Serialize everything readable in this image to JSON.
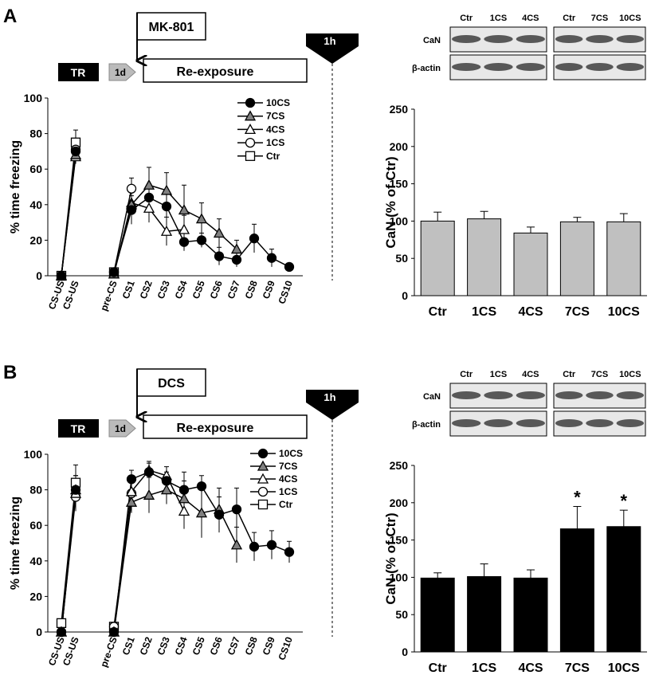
{
  "panels": [
    {
      "label": "A",
      "drug": "MK-801",
      "training": "TR",
      "delay": "1d",
      "session": "Re-exposure",
      "interval": "1h",
      "blot": {
        "groups": [
          [
            "Ctr",
            "1CS",
            "4CS"
          ],
          [
            "Ctr",
            "7CS",
            "10CS"
          ]
        ],
        "rows": [
          "CaN",
          "β-actin"
        ]
      }
    },
    {
      "label": "B",
      "drug": "DCS",
      "training": "TR",
      "delay": "1d",
      "session": "Re-exposure",
      "interval": "1h",
      "blot": {
        "groups": [
          [
            "Ctr",
            "1CS",
            "4CS"
          ],
          [
            "Ctr",
            "7CS",
            "10CS"
          ]
        ],
        "rows": [
          "CaN",
          "β-actin"
        ]
      }
    }
  ],
  "chart_data": [
    {
      "type": "line",
      "ylabel": "% time freezing",
      "categories": [
        "CS-US",
        "CS-US",
        "pre-CS",
        "CS1",
        "CS2",
        "CS3",
        "CS4",
        "CS5",
        "CS6",
        "CS7",
        "CS8",
        "CS9",
        "CS10"
      ],
      "ylim": [
        0,
        100
      ],
      "yticks": [
        0,
        20,
        40,
        60,
        80,
        100
      ],
      "series": [
        {
          "name": "10CS",
          "marker": "circle",
          "color": "#000000",
          "values": [
            0,
            70,
            2,
            37,
            44,
            39,
            19,
            20,
            11,
            9,
            21,
            10,
            5
          ],
          "errors": [
            0,
            5,
            1,
            8,
            7,
            9,
            5,
            4,
            5,
            4,
            8,
            5,
            2
          ]
        },
        {
          "name": "7CS",
          "marker": "triangle",
          "color": "#808080",
          "values": [
            0,
            68,
            1,
            40,
            51,
            48,
            37,
            32,
            24,
            15,
            null,
            null,
            null
          ],
          "errors": [
            0,
            4,
            1,
            10,
            10,
            10,
            14,
            9,
            8,
            5,
            null,
            null,
            null
          ]
        },
        {
          "name": "4CS",
          "marker": "triangle",
          "color": "#ffffff",
          "values": [
            0,
            67,
            1,
            41,
            38,
            25,
            26,
            null,
            null,
            null,
            null,
            null,
            null
          ],
          "errors": [
            0,
            4,
            1,
            9,
            8,
            8,
            8,
            null,
            null,
            null,
            null,
            null,
            null
          ]
        },
        {
          "name": "1CS",
          "marker": "circle",
          "color": "#ffffff",
          "values": [
            0,
            71,
            2,
            49,
            null,
            null,
            null,
            null,
            null,
            null,
            null,
            null,
            null
          ],
          "errors": [
            0,
            5,
            1,
            6,
            null,
            null,
            null,
            null,
            null,
            null,
            null,
            null,
            null
          ]
        },
        {
          "name": "Ctr",
          "marker": "square",
          "color": "#ffffff",
          "values": [
            0,
            75,
            2,
            null,
            null,
            null,
            null,
            null,
            null,
            null,
            null,
            null,
            null
          ],
          "errors": [
            0,
            7,
            1,
            null,
            null,
            null,
            null,
            null,
            null,
            null,
            null,
            null,
            null
          ]
        }
      ]
    },
    {
      "type": "bar",
      "ylabel": "CaN (% of Ctr)",
      "categories": [
        "Ctr",
        "1CS",
        "4CS",
        "7CS",
        "10CS"
      ],
      "values": [
        100,
        103,
        84,
        99,
        99
      ],
      "errors": [
        12,
        10,
        8,
        6,
        11
      ],
      "color": "#c0c0c0",
      "annotations": [
        null,
        null,
        null,
        null,
        null
      ],
      "ylim": [
        0,
        250
      ],
      "yticks": [
        0,
        50,
        100,
        150,
        200,
        250
      ]
    },
    {
      "type": "line",
      "ylabel": "% time freezing",
      "categories": [
        "CS-US",
        "CS-US",
        "pre-CS",
        "CS1",
        "CS2",
        "CS3",
        "CS4",
        "CS5",
        "CS6",
        "CS7",
        "CS8",
        "CS9",
        "CS10"
      ],
      "ylim": [
        0,
        100
      ],
      "yticks": [
        0,
        20,
        40,
        60,
        80,
        100
      ],
      "series": [
        {
          "name": "10CS",
          "marker": "circle",
          "color": "#000000",
          "values": [
            0,
            80,
            0,
            86,
            90,
            85,
            80,
            82,
            66,
            69,
            48,
            49,
            45
          ],
          "errors": [
            0,
            8,
            0,
            5,
            5,
            5,
            10,
            6,
            10,
            12,
            8,
            8,
            6
          ]
        },
        {
          "name": "7CS",
          "marker": "triangle",
          "color": "#808080",
          "values": [
            0,
            80,
            0,
            73,
            77,
            80,
            75,
            67,
            69,
            49,
            null,
            null,
            null
          ],
          "errors": [
            0,
            8,
            0,
            6,
            10,
            8,
            10,
            14,
            12,
            10,
            null,
            null,
            null
          ]
        },
        {
          "name": "4CS",
          "marker": "triangle",
          "color": "#ffffff",
          "values": [
            0,
            78,
            0,
            79,
            91,
            88,
            68,
            null,
            null,
            null,
            null,
            null,
            null
          ],
          "errors": [
            0,
            8,
            0,
            5,
            5,
            5,
            10,
            null,
            null,
            null,
            null,
            null,
            null
          ]
        },
        {
          "name": "1CS",
          "marker": "circle",
          "color": "#ffffff",
          "values": [
            0,
            76,
            3,
            78,
            null,
            null,
            null,
            null,
            null,
            null,
            null,
            null,
            null
          ],
          "errors": [
            0,
            8,
            1,
            6,
            null,
            null,
            null,
            null,
            null,
            null,
            null,
            null,
            null
          ]
        },
        {
          "name": "Ctr",
          "marker": "square",
          "color": "#ffffff",
          "values": [
            5,
            84,
            3,
            null,
            null,
            null,
            null,
            null,
            null,
            null,
            null,
            null,
            null
          ],
          "errors": [
            1,
            10,
            1,
            null,
            null,
            null,
            null,
            null,
            null,
            null,
            null,
            null,
            null
          ]
        }
      ]
    },
    {
      "type": "bar",
      "ylabel": "CaN (% of Ctr)",
      "categories": [
        "Ctr",
        "1CS",
        "4CS",
        "7CS",
        "10CS"
      ],
      "values": [
        99,
        101,
        99,
        165,
        168
      ],
      "errors": [
        7,
        17,
        11,
        30,
        22
      ],
      "color": "#000000",
      "annotations": [
        null,
        null,
        null,
        "*",
        "*"
      ],
      "ylim": [
        0,
        250
      ],
      "yticks": [
        0,
        50,
        100,
        150,
        200,
        250
      ]
    }
  ]
}
